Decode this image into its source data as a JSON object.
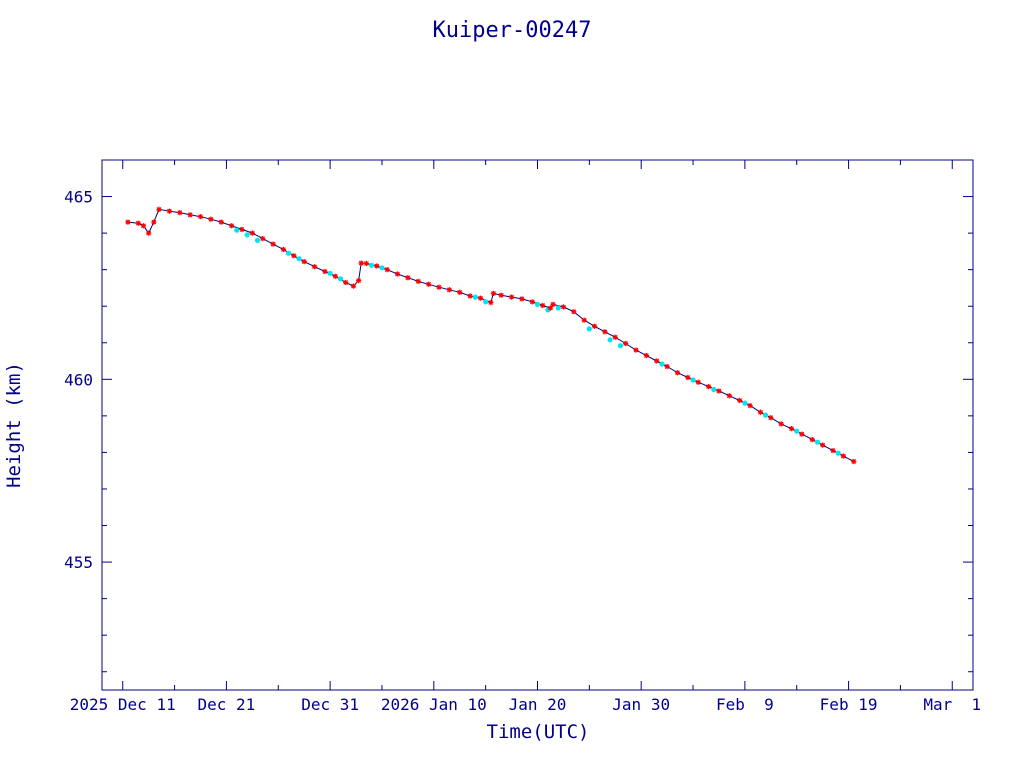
{
  "chart_data": {
    "type": "line",
    "title": "Kuiper-00247",
    "xlabel": "Time(UTC)",
    "ylabel": "Height (km)",
    "xlim": [
      "2025-12-09",
      "2026-03-03"
    ],
    "ylim": [
      451.5,
      466
    ],
    "grid": false,
    "x_ticks": [
      {
        "date": "2025-12-11",
        "label": "2025 Dec 11"
      },
      {
        "date": "2025-12-21",
        "label": "Dec 21"
      },
      {
        "date": "2025-12-31",
        "label": "Dec 31"
      },
      {
        "date": "2026-01-10",
        "label": "2026 Jan 10"
      },
      {
        "date": "2026-01-20",
        "label": "Jan 20"
      },
      {
        "date": "2026-01-30",
        "label": "Jan 30"
      },
      {
        "date": "2026-02-09",
        "label": "Feb  9"
      },
      {
        "date": "2026-02-19",
        "label": "Feb 19"
      },
      {
        "date": "2026-03-01",
        "label": "Mar  1"
      }
    ],
    "y_ticks": [
      455,
      460,
      465
    ],
    "colors": {
      "axis": "#00008b",
      "line": "#00008b",
      "marker": "#ff0000",
      "cyan_marker": "#00e5ee"
    },
    "series": [
      {
        "marker": "asterisk",
        "color": "#ff0000",
        "points": [
          [
            "2025-12-11T12:00",
            464.3
          ],
          [
            "2025-12-12T12:00",
            464.27
          ],
          [
            "2025-12-13T00:00",
            464.2
          ],
          [
            "2025-12-13T12:00",
            464.0
          ],
          [
            "2025-12-14T00:00",
            464.3
          ],
          [
            "2025-12-14T12:00",
            464.65
          ],
          [
            "2025-12-15T12:00",
            464.6
          ],
          [
            "2025-12-16T12:00",
            464.56
          ],
          [
            "2025-12-17T12:00",
            464.5
          ],
          [
            "2025-12-18T12:00",
            464.45
          ],
          [
            "2025-12-19T12:00",
            464.38
          ],
          [
            "2025-12-20T12:00",
            464.3
          ],
          [
            "2025-12-21T12:00",
            464.2
          ],
          [
            "2025-12-22T12:00",
            464.1
          ],
          [
            "2025-12-23T12:00",
            464.0
          ],
          [
            "2025-12-24T12:00",
            463.85
          ],
          [
            "2025-12-25T12:00",
            463.7
          ],
          [
            "2025-12-26T12:00",
            463.55
          ],
          [
            "2025-12-27T12:00",
            463.38
          ],
          [
            "2025-12-28T12:00",
            463.22
          ],
          [
            "2025-12-29T12:00",
            463.08
          ],
          [
            "2025-12-30T12:00",
            462.95
          ],
          [
            "2025-12-31T12:00",
            462.82
          ],
          [
            "2026-01-01T12:00",
            462.65
          ],
          [
            "2026-01-02T06:00",
            462.55
          ],
          [
            "2026-01-02T18:00",
            462.7
          ],
          [
            "2026-01-03T00:00",
            463.18
          ],
          [
            "2026-01-03T12:00",
            463.17
          ],
          [
            "2026-01-04T12:00",
            463.1
          ],
          [
            "2026-01-05T12:00",
            463.0
          ],
          [
            "2026-01-06T12:00",
            462.88
          ],
          [
            "2026-01-07T12:00",
            462.78
          ],
          [
            "2026-01-08T12:00",
            462.68
          ],
          [
            "2026-01-09T12:00",
            462.6
          ],
          [
            "2026-01-10T12:00",
            462.52
          ],
          [
            "2026-01-11T12:00",
            462.45
          ],
          [
            "2026-01-12T12:00",
            462.38
          ],
          [
            "2026-01-13T12:00",
            462.28
          ],
          [
            "2026-01-14T12:00",
            462.22
          ],
          [
            "2026-01-15T12:00",
            462.1
          ],
          [
            "2026-01-15T18:00",
            462.35
          ],
          [
            "2026-01-16T12:00",
            462.3
          ],
          [
            "2026-01-17T12:00",
            462.25
          ],
          [
            "2026-01-18T12:00",
            462.2
          ],
          [
            "2026-01-19T12:00",
            462.12
          ],
          [
            "2026-01-20T12:00",
            462.02
          ],
          [
            "2026-01-21T06:00",
            461.95
          ],
          [
            "2026-01-21T12:00",
            462.05
          ],
          [
            "2026-01-22T12:00",
            461.98
          ],
          [
            "2026-01-23T12:00",
            461.85
          ],
          [
            "2026-01-24T12:00",
            461.62
          ],
          [
            "2026-01-25T12:00",
            461.45
          ],
          [
            "2026-01-26T12:00",
            461.3
          ],
          [
            "2026-01-27T12:00",
            461.15
          ],
          [
            "2026-01-28T12:00",
            460.98
          ],
          [
            "2026-01-29T12:00",
            460.8
          ],
          [
            "2026-01-30T12:00",
            460.65
          ],
          [
            "2026-01-31T12:00",
            460.5
          ],
          [
            "2026-02-01T12:00",
            460.35
          ],
          [
            "2026-02-02T12:00",
            460.18
          ],
          [
            "2026-02-03T12:00",
            460.05
          ],
          [
            "2026-02-04T12:00",
            459.92
          ],
          [
            "2026-02-05T12:00",
            459.8
          ],
          [
            "2026-02-06T12:00",
            459.68
          ],
          [
            "2026-02-07T12:00",
            459.55
          ],
          [
            "2026-02-08T12:00",
            459.42
          ],
          [
            "2026-02-09T12:00",
            459.28
          ],
          [
            "2026-02-10T12:00",
            459.1
          ],
          [
            "2026-02-11T12:00",
            458.95
          ],
          [
            "2026-02-12T12:00",
            458.78
          ],
          [
            "2026-02-13T12:00",
            458.65
          ],
          [
            "2026-02-14T12:00",
            458.5
          ],
          [
            "2026-02-15T12:00",
            458.35
          ],
          [
            "2026-02-16T12:00",
            458.2
          ],
          [
            "2026-02-17T12:00",
            458.05
          ],
          [
            "2026-02-18T12:00",
            457.9
          ],
          [
            "2026-02-19T12:00",
            457.75
          ]
        ]
      },
      {
        "marker": "dot",
        "color": "#00e5ee",
        "points": [
          [
            "2025-12-22T00:00",
            464.08
          ],
          [
            "2025-12-23T00:00",
            463.95
          ],
          [
            "2025-12-24T00:00",
            463.8
          ],
          [
            "2025-12-27T00:00",
            463.45
          ],
          [
            "2025-12-28T00:00",
            463.3
          ],
          [
            "2025-12-31T00:00",
            462.9
          ],
          [
            "2026-01-01T00:00",
            462.75
          ],
          [
            "2026-01-04T00:00",
            463.12
          ],
          [
            "2026-01-05T00:00",
            463.05
          ],
          [
            "2026-01-14T00:00",
            462.25
          ],
          [
            "2026-01-15T00:00",
            462.12
          ],
          [
            "2026-01-20T00:00",
            462.05
          ],
          [
            "2026-01-21T00:00",
            461.9
          ],
          [
            "2026-01-22T00:00",
            461.95
          ],
          [
            "2026-01-25T00:00",
            461.38
          ],
          [
            "2026-01-27T00:00",
            461.08
          ],
          [
            "2026-01-28T00:00",
            460.92
          ],
          [
            "2026-02-01T00:00",
            460.42
          ],
          [
            "2026-02-04T00:00",
            459.98
          ],
          [
            "2026-02-06T00:00",
            459.72
          ],
          [
            "2026-02-09T00:00",
            459.35
          ],
          [
            "2026-02-11T00:00",
            459.02
          ],
          [
            "2026-02-14T00:00",
            458.58
          ],
          [
            "2026-02-16T00:00",
            458.28
          ],
          [
            "2026-02-18T00:00",
            457.98
          ]
        ]
      }
    ]
  }
}
